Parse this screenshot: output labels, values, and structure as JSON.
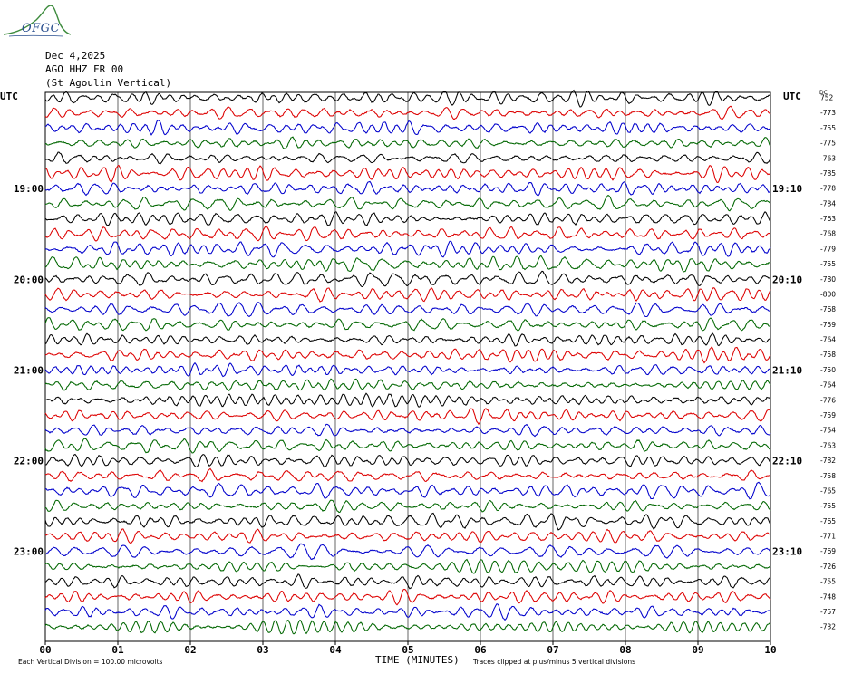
{
  "header": {
    "logo_text": "OFGC",
    "date": "Dec 4,2025",
    "station": "AGO HHZ FR 00",
    "station_name": "(St Agoulin Vertical)"
  },
  "colors": {
    "trace_cycle": [
      "#000000",
      "#dd0000",
      "#0000cc",
      "#006600"
    ],
    "grid": "#000000",
    "logo_green": "#3d8b3d",
    "logo_blue": "#2a4f8f"
  },
  "footer": {
    "scale_note": "Each Vertical Division = 100.00 microvolts",
    "x_axis_title": "TIME (MINUTES)",
    "clip_note": "Traces clipped at plus/minus 5 vertical divisions"
  },
  "chart_data": {
    "type": "line",
    "subtype": "helicorder",
    "title": "AGO HHZ FR 00 (St Agoulin Vertical)",
    "xlabel": "TIME (MINUTES)",
    "xlim": [
      0,
      10
    ],
    "x_tick_labels": [
      "00",
      "01",
      "02",
      "03",
      "04",
      "05",
      "06",
      "07",
      "08",
      "09",
      "10"
    ],
    "left_axis_title": "UTC",
    "right_axis_title": "UTC",
    "right_corner_label": "DC",
    "left_hour_labels": [
      {
        "row": 6,
        "label": "19:00"
      },
      {
        "row": 12,
        "label": "20:00"
      },
      {
        "row": 18,
        "label": "21:00"
      },
      {
        "row": 24,
        "label": "22:00"
      },
      {
        "row": 30,
        "label": "23:00"
      }
    ],
    "right_hour_labels": [
      {
        "row": 6,
        "label": "19:10"
      },
      {
        "row": 12,
        "label": "20:10"
      },
      {
        "row": 18,
        "label": "21:10"
      },
      {
        "row": 24,
        "label": "22:10"
      },
      {
        "row": 30,
        "label": "23:10"
      }
    ],
    "row_offsets": [
      "752",
      "-773",
      "-755",
      "-775",
      "-763",
      "-785",
      "-778",
      "-784",
      "-763",
      "-768",
      "-779",
      "-755",
      "-780",
      "-800",
      "-768",
      "-759",
      "-764",
      "-758",
      "-750",
      "-764",
      "-776",
      "-759",
      "-754",
      "-763",
      "-782",
      "-758",
      "-765",
      "-755",
      "-765",
      "-771",
      "-769",
      "-726",
      "-755",
      "-748",
      "-757",
      "-732"
    ],
    "row_count": 36,
    "grid": true,
    "scale_microvolts_per_division": 100.0,
    "clip_divisions": 5
  }
}
